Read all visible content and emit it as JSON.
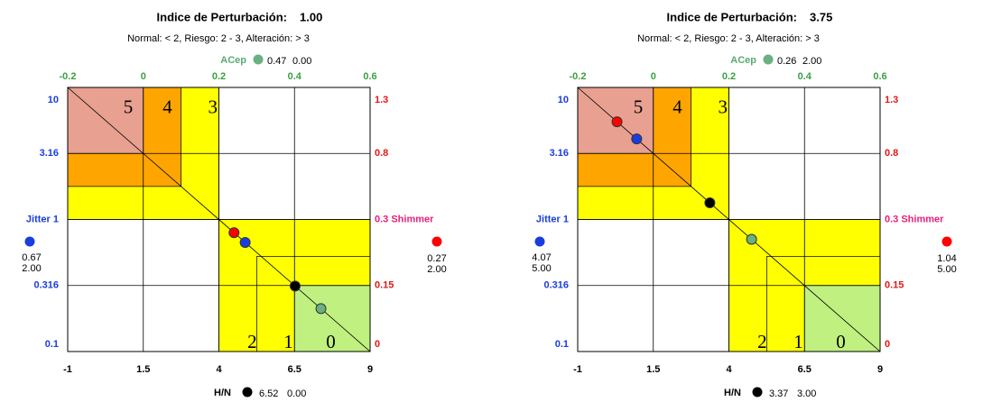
{
  "panels": [
    {
      "title": "Indice de Perturbación:",
      "index": "1.00",
      "legend": "Normal: < 2, Riesgo: 2 - 3, Alteración: > 3",
      "zones": [
        "5",
        "4",
        "3",
        "2",
        "1",
        "0"
      ],
      "acep": {
        "label": "ACep",
        "ticks": [
          -0.2,
          0,
          0.2,
          0.4,
          0.6
        ],
        "value": 0.47,
        "score": "0.00"
      },
      "hn": {
        "label": "H/N",
        "ticks": [
          -1,
          1.5,
          4,
          6.5,
          9
        ],
        "value": 6.52,
        "score": "0.00"
      },
      "jitter": {
        "ticks": [
          0.1,
          0.316,
          {
            "value": 1,
            "label": "Jitter 1"
          },
          3.16,
          10
        ],
        "log": true,
        "value": 0.67,
        "score": "2.00"
      },
      "shimmer": {
        "ticks": [
          0,
          0.15,
          {
            "value": 0.3,
            "label": "0.3 Shimmer"
          },
          0.8,
          1.3
        ],
        "value": 0.27,
        "score": "2.00"
      }
    },
    {
      "title": "Indice de Perturbación:",
      "index": "3.75",
      "legend": "Normal: < 2, Riesgo: 2 - 3, Alteración: > 3",
      "zones": [
        "5",
        "4",
        "3",
        "2",
        "1",
        "0"
      ],
      "acep": {
        "label": "ACep",
        "ticks": [
          -0.2,
          0,
          0.2,
          0.4,
          0.6
        ],
        "value": 0.26,
        "score": "2.00"
      },
      "hn": {
        "label": "H/N",
        "ticks": [
          -1,
          1.5,
          4,
          6.5,
          9
        ],
        "value": 3.37,
        "score": "3.00"
      },
      "jitter": {
        "ticks": [
          0.1,
          0.316,
          {
            "value": 1,
            "label": "Jitter 1"
          },
          3.16,
          10
        ],
        "log": true,
        "value": 4.07,
        "score": "5.00"
      },
      "shimmer": {
        "ticks": [
          0,
          0.15,
          {
            "value": 0.3,
            "label": "0.3 Shimmer"
          },
          0.8,
          1.3
        ],
        "value": 1.04,
        "score": "5.00"
      }
    }
  ]
}
